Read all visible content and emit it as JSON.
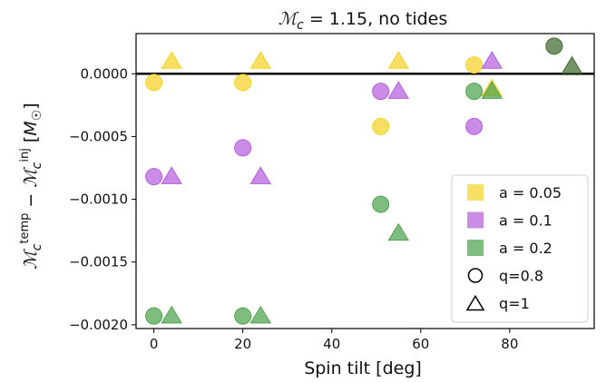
{
  "chart_data": {
    "type": "scatter",
    "title": "ℳc = 1.15, no tides",
    "xlabel": "Spin tilt [deg]",
    "ylabel": "ℳc^temp − ℳc^inj [M☉]",
    "xlim": [
      -4,
      99
    ],
    "ylim": [
      -0.00203,
      0.00032
    ],
    "xticks": [
      0,
      20,
      40,
      60,
      80
    ],
    "yticks": [
      0.0,
      -0.0005,
      -0.001,
      -0.0015,
      -0.002
    ],
    "ytick_labels": [
      "0.0000",
      "−0.0005",
      "−0.0010",
      "−0.0015",
      "−0.0020"
    ],
    "hline": 0.0,
    "grid": false,
    "legend_position": "lower-right",
    "legend": {
      "series": [
        {
          "label": "a = 0.05",
          "color": "#f5d327"
        },
        {
          "label": "a = 0.1",
          "color": "#b65fdc"
        },
        {
          "label": "a = 0.2",
          "color": "#4ea24e"
        }
      ],
      "markers": [
        {
          "label": "q=0.8",
          "shape": "circle"
        },
        {
          "label": "q=1",
          "shape": "triangle"
        }
      ]
    },
    "series": [
      {
        "name": "a = 0.05",
        "color": "#f5d327",
        "marker": "circle",
        "x": [
          0,
          20,
          51,
          72
        ],
        "y": [
          -7e-05,
          -7e-05,
          -0.00042,
          7e-05
        ]
      },
      {
        "name": "a = 0.05",
        "color": "#f5d327",
        "marker": "triangle",
        "x": [
          4,
          24,
          55,
          76
        ],
        "y": [
          0.0001,
          0.0001,
          0.0001,
          -0.00012
        ]
      },
      {
        "name": "a = 0.1",
        "color": "#b65fdc",
        "marker": "circle",
        "x": [
          0,
          20,
          51,
          72
        ],
        "y": [
          -0.00082,
          -0.00059,
          -0.00014,
          -0.00042
        ]
      },
      {
        "name": "a = 0.1",
        "color": "#b65fdc",
        "marker": "triangle",
        "x": [
          4,
          24,
          55,
          76
        ],
        "y": [
          -0.00082,
          -0.00082,
          -0.00014,
          0.0001
        ]
      },
      {
        "name": "a = 0.2",
        "color": "#4ea24e",
        "marker": "circle",
        "x": [
          0,
          20,
          51,
          72
        ],
        "y": [
          -0.00193,
          -0.00193,
          -0.00104,
          -0.00014
        ]
      },
      {
        "name": "a = 0.2",
        "color": "#4ea24e",
        "marker": "triangle",
        "x": [
          4,
          24,
          55,
          76
        ],
        "y": [
          -0.00193,
          -0.00193,
          -0.00127,
          -0.00014
        ]
      },
      {
        "name": "a = 0.2",
        "color": "#3f6a2c",
        "marker": "circle",
        "x": [
          90
        ],
        "y": [
          0.00022
        ]
      },
      {
        "name": "a = 0.2",
        "color": "#3f6a2c",
        "marker": "triangle",
        "x": [
          94
        ],
        "y": [
          6e-05
        ]
      }
    ]
  }
}
